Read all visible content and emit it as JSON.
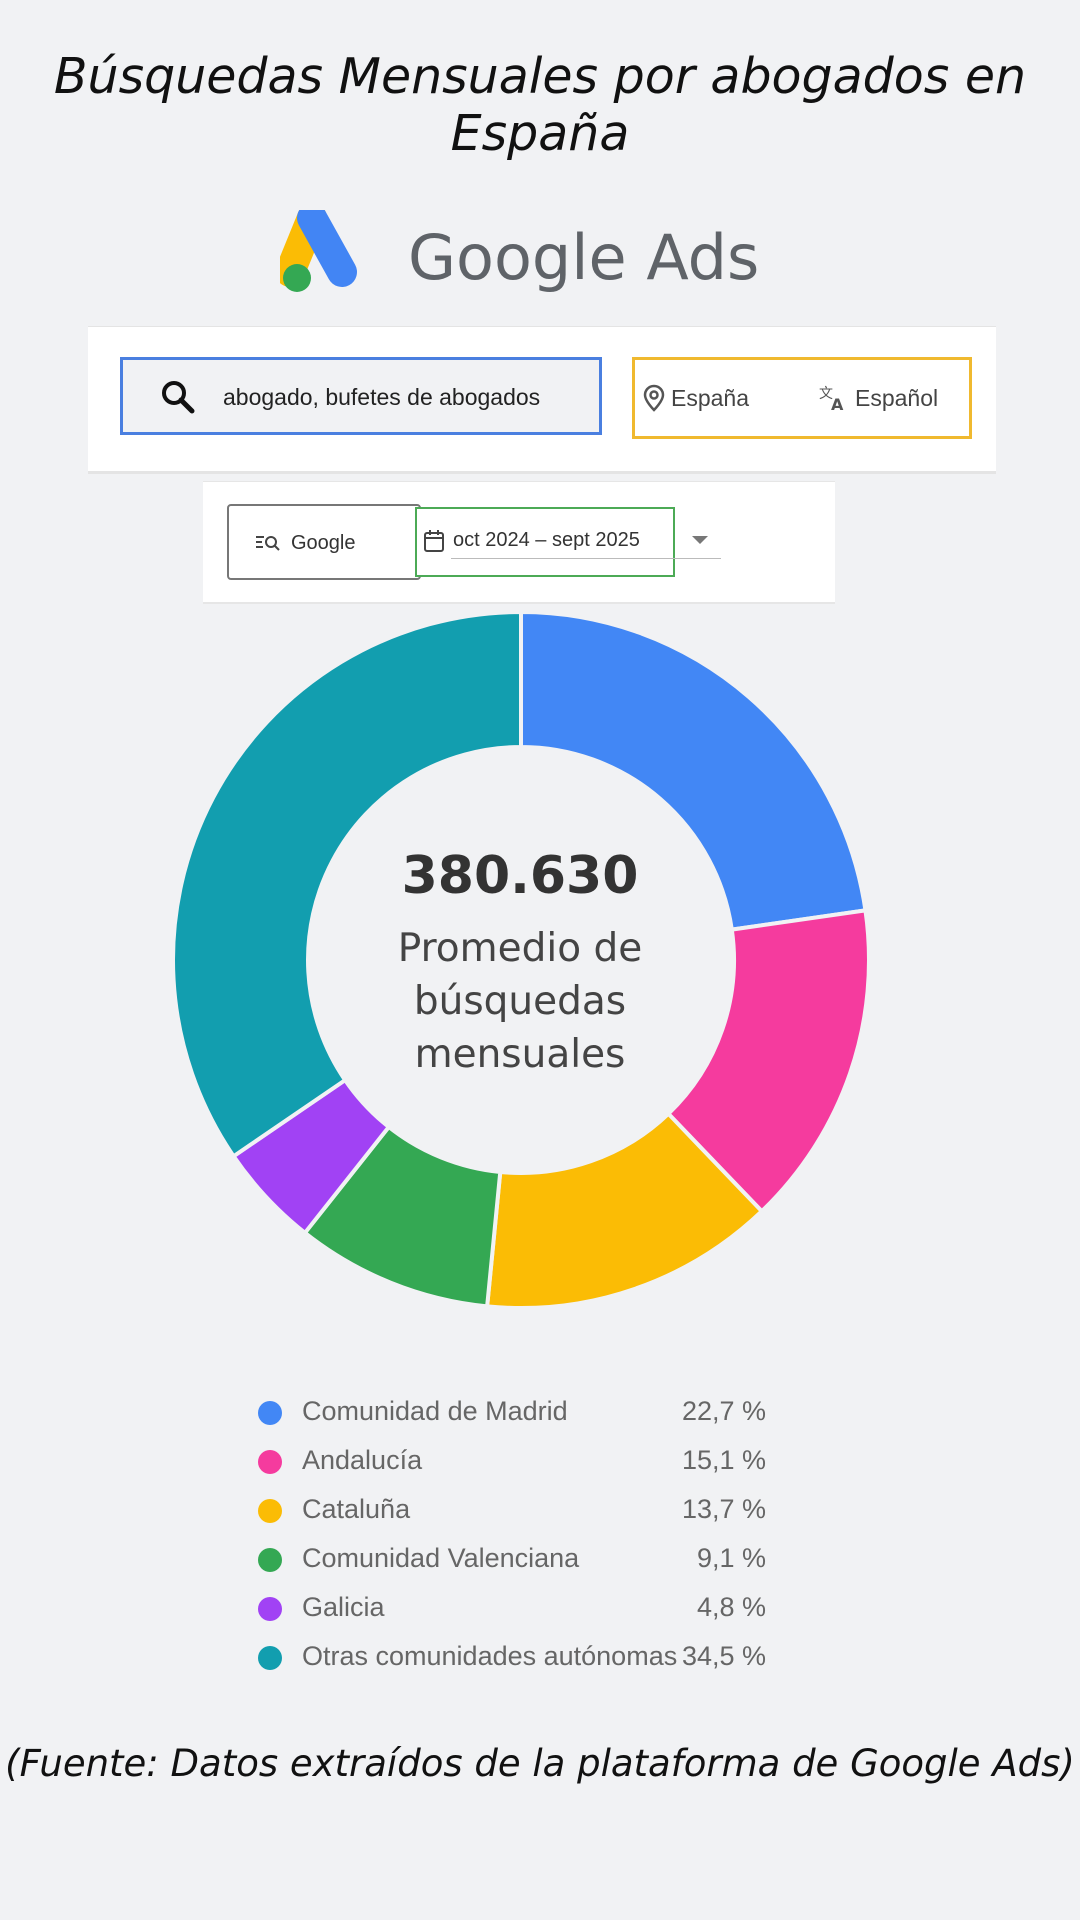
{
  "title": "Búsquedas Mensuales por abogados en España",
  "logo": {
    "text": "Google Ads",
    "icon": "google-ads-logo-icon"
  },
  "search": {
    "keywords": "abogado, bufetes de abogados",
    "location": "España",
    "language": "Español",
    "network": "Google",
    "date_range": "oct 2024 – sept 2025"
  },
  "colors": {
    "keyword_border": "#4a7fe0",
    "location_border": "#f0b92f",
    "date_border": "#4caa56"
  },
  "chart_data": {
    "type": "pie",
    "style": "donut",
    "center_value": "380.630",
    "center_label": "Promedio de búsquedas mensuales",
    "categories": [
      "Comunidad de Madrid",
      "Andalucía",
      "Cataluña",
      "Comunidad Valenciana",
      "Galicia",
      "Otras comunidades autónomas"
    ],
    "values": [
      22.7,
      15.1,
      13.7,
      9.1,
      4.8,
      34.5
    ],
    "value_labels": [
      "22,7 %",
      "15,1 %",
      "13,7 %",
      "9,1 %",
      "4,8 %",
      "34,5 %"
    ],
    "colors": [
      "#4287f5",
      "#f53b9e",
      "#fbbc05",
      "#34a853",
      "#a142f4",
      "#129eaf"
    ],
    "legend_position": "bottom"
  },
  "source": "(Fuente: Datos extraídos de la plataforma de Google Ads)"
}
